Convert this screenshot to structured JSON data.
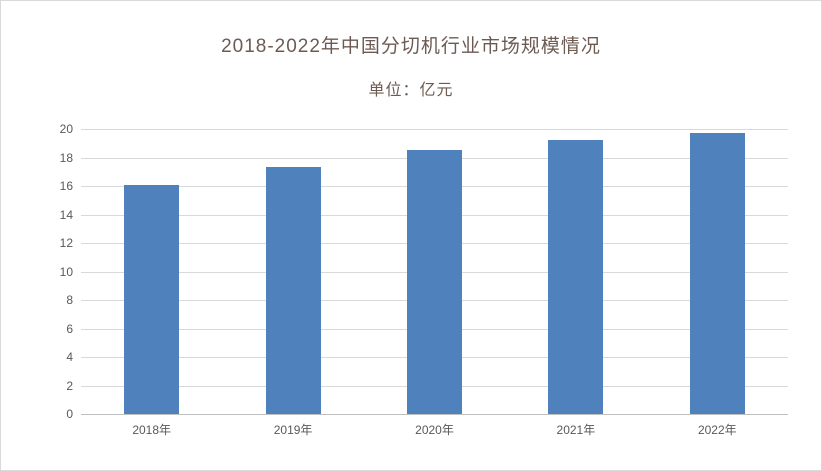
{
  "chart": {
    "title": "2018-2022年中国分切机行业市场规模情况",
    "subtitle": "单位：亿元"
  },
  "chart_data": {
    "type": "bar",
    "title": "2018-2022年中国分切机行业市场规模情况",
    "subtitle": "单位：亿元",
    "categories": [
      "2018年",
      "2019年",
      "2020年",
      "2021年",
      "2022年"
    ],
    "values": [
      16.1,
      17.3,
      18.5,
      19.2,
      19.7
    ],
    "xlabel": "",
    "ylabel": "",
    "ylim": [
      0,
      20
    ],
    "yticks": [
      0,
      2,
      4,
      6,
      8,
      10,
      12,
      14,
      16,
      18,
      20
    ],
    "grid": true,
    "legend": "none",
    "bar_color": "#4f81bd",
    "grid_color": "#d9d9d9",
    "axis_line_color": "#c0c0c0",
    "tick_label_color": "#595959",
    "title_color": "#6d5b53"
  }
}
